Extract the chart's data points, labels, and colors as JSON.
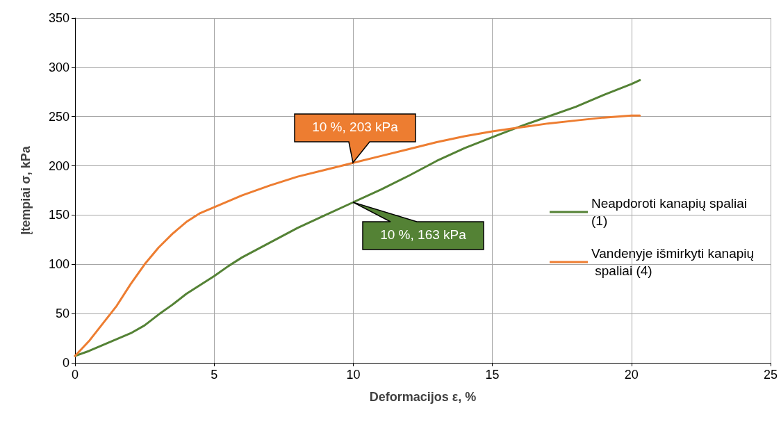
{
  "chart_data": {
    "type": "line",
    "xlabel": "Deformacijos ε, %",
    "ylabel": "Įtempiai σ, kPa",
    "xlim": [
      0,
      25
    ],
    "xticks": [
      0,
      5,
      10,
      15,
      20,
      25
    ],
    "ylim": [
      0,
      350
    ],
    "yticks": [
      0,
      50,
      100,
      150,
      200,
      250,
      300,
      350
    ],
    "grid": true,
    "legend": "right",
    "marker": "none",
    "line_style": "solid",
    "series": [
      {
        "name": "Neapdoroti kanapių spaliai (1)",
        "color": "#548235",
        "x": [
          0,
          0.5,
          1,
          1.5,
          2,
          2.5,
          3,
          3.5,
          4,
          4.5,
          5,
          5.5,
          6,
          7,
          8,
          9,
          10,
          11,
          12,
          13,
          14,
          15,
          16,
          17,
          18,
          19,
          20,
          20.3
        ],
        "values": [
          7,
          12,
          18,
          24,
          30,
          38,
          49,
          59,
          70,
          79,
          88,
          98,
          107,
          122,
          137,
          150,
          163,
          176,
          190,
          205,
          218,
          229,
          240,
          250,
          260,
          272,
          283,
          287
        ]
      },
      {
        "name": "Vandenyje išmirkyti kanapių spaliai (4)",
        "color": "#ed7d31",
        "x": [
          0,
          0.5,
          1,
          1.5,
          2,
          2.5,
          3,
          3.5,
          4,
          4.5,
          5,
          6,
          7,
          8,
          9,
          10,
          11,
          12,
          13,
          14,
          15,
          16,
          17,
          18,
          19,
          20,
          20.3
        ],
        "values": [
          7,
          22,
          40,
          58,
          80,
          100,
          117,
          131,
          143,
          152,
          158,
          170,
          180,
          189,
          196,
          203,
          210,
          217,
          224,
          230,
          235,
          239,
          243,
          246,
          249,
          251,
          251
        ]
      }
    ],
    "annotations": [
      {
        "text": "10 %, 203 kPa",
        "x": 10,
        "y": 203
      },
      {
        "text": "10 %, 163 kPa",
        "x": 10,
        "y": 163
      }
    ]
  }
}
